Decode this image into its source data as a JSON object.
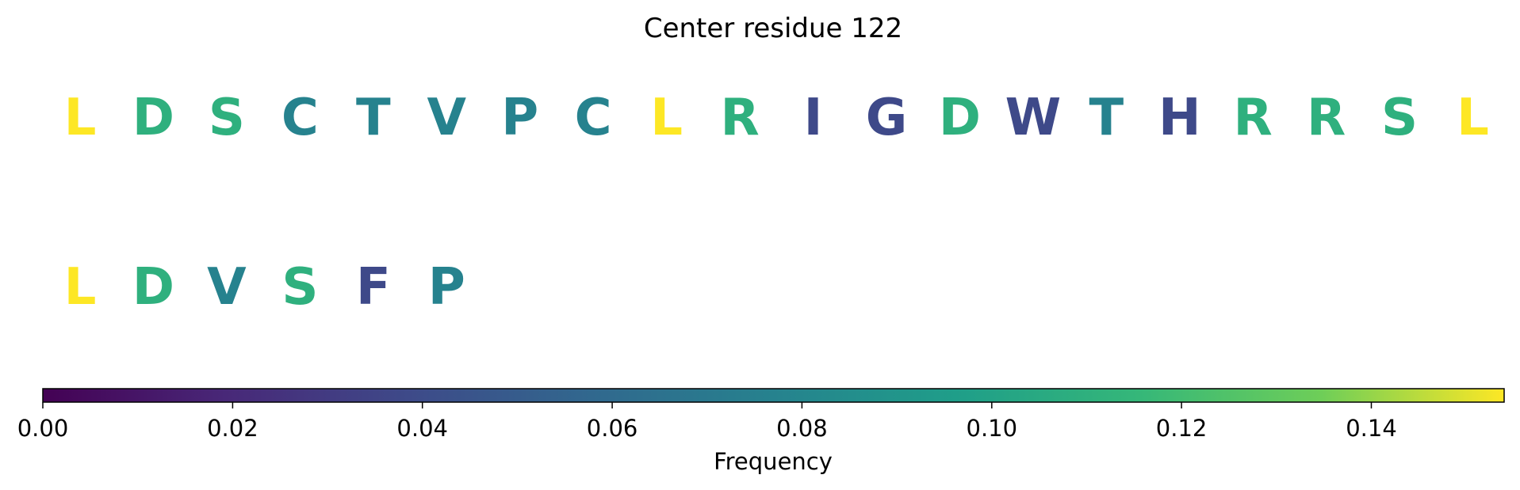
{
  "chart_data": {
    "type": "heatmap",
    "title": "Center residue 122",
    "residues": [
      {
        "letter": "L",
        "frequency": 0.154
      },
      {
        "letter": "D",
        "frequency": 0.11
      },
      {
        "letter": "S",
        "frequency": 0.11
      },
      {
        "letter": "C",
        "frequency": 0.077
      },
      {
        "letter": "T",
        "frequency": 0.077
      },
      {
        "letter": "V",
        "frequency": 0.077
      },
      {
        "letter": "P",
        "frequency": 0.077
      },
      {
        "letter": "C",
        "frequency": 0.077
      },
      {
        "letter": "L",
        "frequency": 0.154
      },
      {
        "letter": "R",
        "frequency": 0.11
      },
      {
        "letter": "I",
        "frequency": 0.038
      },
      {
        "letter": "G",
        "frequency": 0.038
      },
      {
        "letter": "D",
        "frequency": 0.11
      },
      {
        "letter": "W",
        "frequency": 0.038
      },
      {
        "letter": "T",
        "frequency": 0.077
      },
      {
        "letter": "H",
        "frequency": 0.038
      },
      {
        "letter": "R",
        "frequency": 0.11
      },
      {
        "letter": "R",
        "frequency": 0.11
      },
      {
        "letter": "S",
        "frequency": 0.11
      },
      {
        "letter": "L",
        "frequency": 0.154
      },
      {
        "letter": "L",
        "frequency": 0.154
      },
      {
        "letter": "D",
        "frequency": 0.11
      },
      {
        "letter": "V",
        "frequency": 0.077
      },
      {
        "letter": "S",
        "frequency": 0.11
      },
      {
        "letter": "F",
        "frequency": 0.038
      },
      {
        "letter": "P",
        "frequency": 0.077
      }
    ],
    "letters_per_row": 20,
    "colormap": "viridis",
    "colorbar": {
      "label": "Frequency",
      "range": [
        0,
        0.154
      ],
      "ticks": [
        0.0,
        0.02,
        0.04,
        0.06,
        0.08,
        0.1,
        0.12,
        0.14
      ],
      "tick_labels": [
        "0.00",
        "0.02",
        "0.04",
        "0.06",
        "0.08",
        "0.10",
        "0.12",
        "0.14"
      ],
      "orientation": "horizontal"
    }
  }
}
